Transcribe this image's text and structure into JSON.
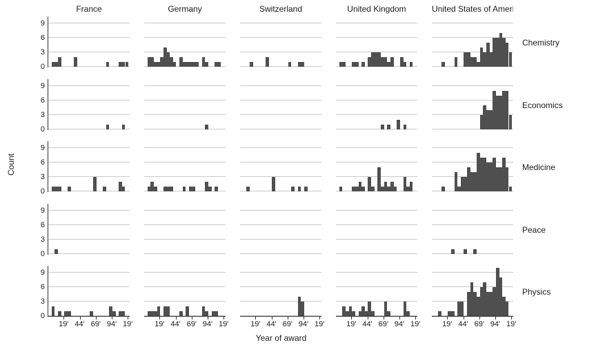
{
  "chart": {
    "x_axis_label": "Year of award",
    "y_axis_label": "Count",
    "x_tick_labels": [
      "19'",
      "44'",
      "69'",
      "94'",
      "19'"
    ],
    "y_tick_labels": [
      "9",
      "6",
      "3",
      "0"
    ],
    "columns": [
      "France",
      "Germany",
      "Switzerland",
      "United Kingdom",
      "United States of America"
    ],
    "rows": [
      "Chemistry",
      "Economics",
      "Medicine",
      "Peace",
      "Physics"
    ],
    "colors": {
      "bar": "#4f4f4f",
      "gridline": "#c9c9c9",
      "axis": "#333333",
      "text": "#1a1a1a"
    }
  },
  "chart_data": {
    "type": "bar",
    "subtype": "faceted-histogram",
    "title": "",
    "xlabel": "Year of award",
    "ylabel": "Count",
    "x_domain": [
      1895,
      2022
    ],
    "bin_width_years": 5,
    "x_tick_years": [
      1919,
      1944,
      1969,
      1994,
      2019
    ],
    "y_gridlines": [
      0,
      3,
      6,
      9
    ],
    "y_max": 10.4,
    "facet_columns": [
      "France",
      "Germany",
      "Switzerland",
      "United Kingdom",
      "United States of America"
    ],
    "facet_rows": [
      "Chemistry",
      "Economics",
      "Medicine",
      "Peace",
      "Physics"
    ],
    "facets": {
      "France": {
        "Chemistry": {
          "1900": 1,
          "1905": 1,
          "1910": 2,
          "1935": 2,
          "1985": 1,
          "2005": 1,
          "2010": 1,
          "2015": 1
        },
        "Economics": {
          "1985": 1,
          "2010": 1
        },
        "Medicine": {
          "1900": 1,
          "1905": 1,
          "1910": 1,
          "1925": 1,
          "1965": 3,
          "1980": 1,
          "2005": 2,
          "2010": 1
        },
        "Peace": {
          "1905": 1
        },
        "Physics": {
          "1900": 2,
          "1910": 1,
          "1920": 1,
          "1925": 1,
          "1960": 1,
          "1990": 2,
          "1995": 1,
          "2005": 1,
          "2010": 1
        }
      },
      "Germany": {
        "Chemistry": {
          "1900": 2,
          "1905": 2,
          "1910": 1,
          "1915": 1,
          "1920": 2,
          "1925": 4,
          "1930": 3,
          "1935": 2,
          "1940": 1,
          "1950": 2,
          "1955": 1,
          "1960": 1,
          "1965": 1,
          "1970": 1,
          "1975": 1,
          "1985": 2,
          "1990": 1,
          "2005": 1,
          "2010": 1
        },
        "Economics": {
          "1990": 1
        },
        "Medicine": {
          "1900": 1,
          "1905": 2,
          "1910": 1,
          "1925": 1,
          "1930": 1,
          "1935": 1,
          "1955": 1,
          "1965": 1,
          "1970": 1,
          "1990": 2,
          "1995": 1,
          "2005": 1
        },
        "Peace": {},
        "Physics": {
          "1900": 1,
          "1905": 1,
          "1910": 1,
          "1915": 2,
          "1925": 2,
          "1930": 2,
          "1950": 1,
          "1960": 2,
          "1985": 2,
          "1990": 1,
          "2000": 1,
          "2005": 1
        }
      },
      "Switzerland": {
        "Chemistry": {
          "1910": 1,
          "1935": 2,
          "1970": 1,
          "1985": 1,
          "1990": 1
        },
        "Economics": {},
        "Medicine": {
          "1905": 1,
          "1945": 3,
          "1975": 1,
          "1985": 1,
          "1995": 1
        },
        "Peace": {},
        "Physics": {
          "1985": 4,
          "1990": 3
        }
      },
      "United Kingdom": {
        "Chemistry": {
          "1900": 1,
          "1905": 1,
          "1920": 1,
          "1925": 1,
          "1935": 1,
          "1945": 2,
          "1950": 3,
          "1955": 3,
          "1960": 3,
          "1965": 2,
          "1970": 2,
          "1975": 1,
          "1980": 2,
          "1995": 2,
          "2000": 1,
          "2010": 1
        },
        "Economics": {
          "1965": 1,
          "1975": 1,
          "1990": 2,
          "2000": 1
        },
        "Medicine": {
          "1900": 1,
          "1920": 1,
          "1925": 1,
          "1930": 2,
          "1935": 1,
          "1945": 3,
          "1950": 1,
          "1960": 5,
          "1965": 1,
          "1970": 2,
          "1975": 1,
          "1980": 2,
          "1985": 1,
          "2000": 3,
          "2005": 1,
          "2010": 2
        },
        "Peace": {},
        "Physics": {
          "1905": 2,
          "1910": 1,
          "1915": 2,
          "1920": 1,
          "1930": 1,
          "1935": 2,
          "1940": 1,
          "1945": 3,
          "1950": 1,
          "1970": 3,
          "1975": 1,
          "2000": 3,
          "2005": 1
        }
      },
      "United States of America": {
        "Chemistry": {
          "1910": 1,
          "1930": 2,
          "1945": 3,
          "1950": 3,
          "1955": 2,
          "1960": 2,
          "1965": 1,
          "1970": 4,
          "1975": 3,
          "1980": 5,
          "1985": 3,
          "1990": 6,
          "1995": 6,
          "2000": 7,
          "2005": 6,
          "2010": 5,
          "2015": 3
        },
        "Economics": {
          "1970": 3,
          "1975": 5,
          "1980": 4,
          "1985": 4,
          "1990": 8,
          "1995": 7,
          "2000": 7,
          "2005": 8,
          "2010": 8,
          "2015": 3
        },
        "Medicine": {
          "1910": 1,
          "1930": 4,
          "1935": 1,
          "1940": 3,
          "1945": 3,
          "1950": 5,
          "1955": 4,
          "1960": 4,
          "1965": 8,
          "1970": 7,
          "1975": 7,
          "1980": 6,
          "1985": 6,
          "1990": 7,
          "1995": 5,
          "2000": 5,
          "2005": 7,
          "2010": 5,
          "2015": 1
        },
        "Peace": {
          "1925": 1,
          "1945": 1,
          "1960": 1
        },
        "Physics": {
          "1905": 1,
          "1920": 1,
          "1925": 1,
          "1935": 3,
          "1940": 3,
          "1950": 5,
          "1955": 7,
          "1960": 5,
          "1965": 4,
          "1970": 6,
          "1975": 7,
          "1980": 5,
          "1985": 5,
          "1990": 6,
          "1995": 10,
          "2000": 8,
          "2005": 4,
          "2010": 3
        }
      }
    }
  }
}
